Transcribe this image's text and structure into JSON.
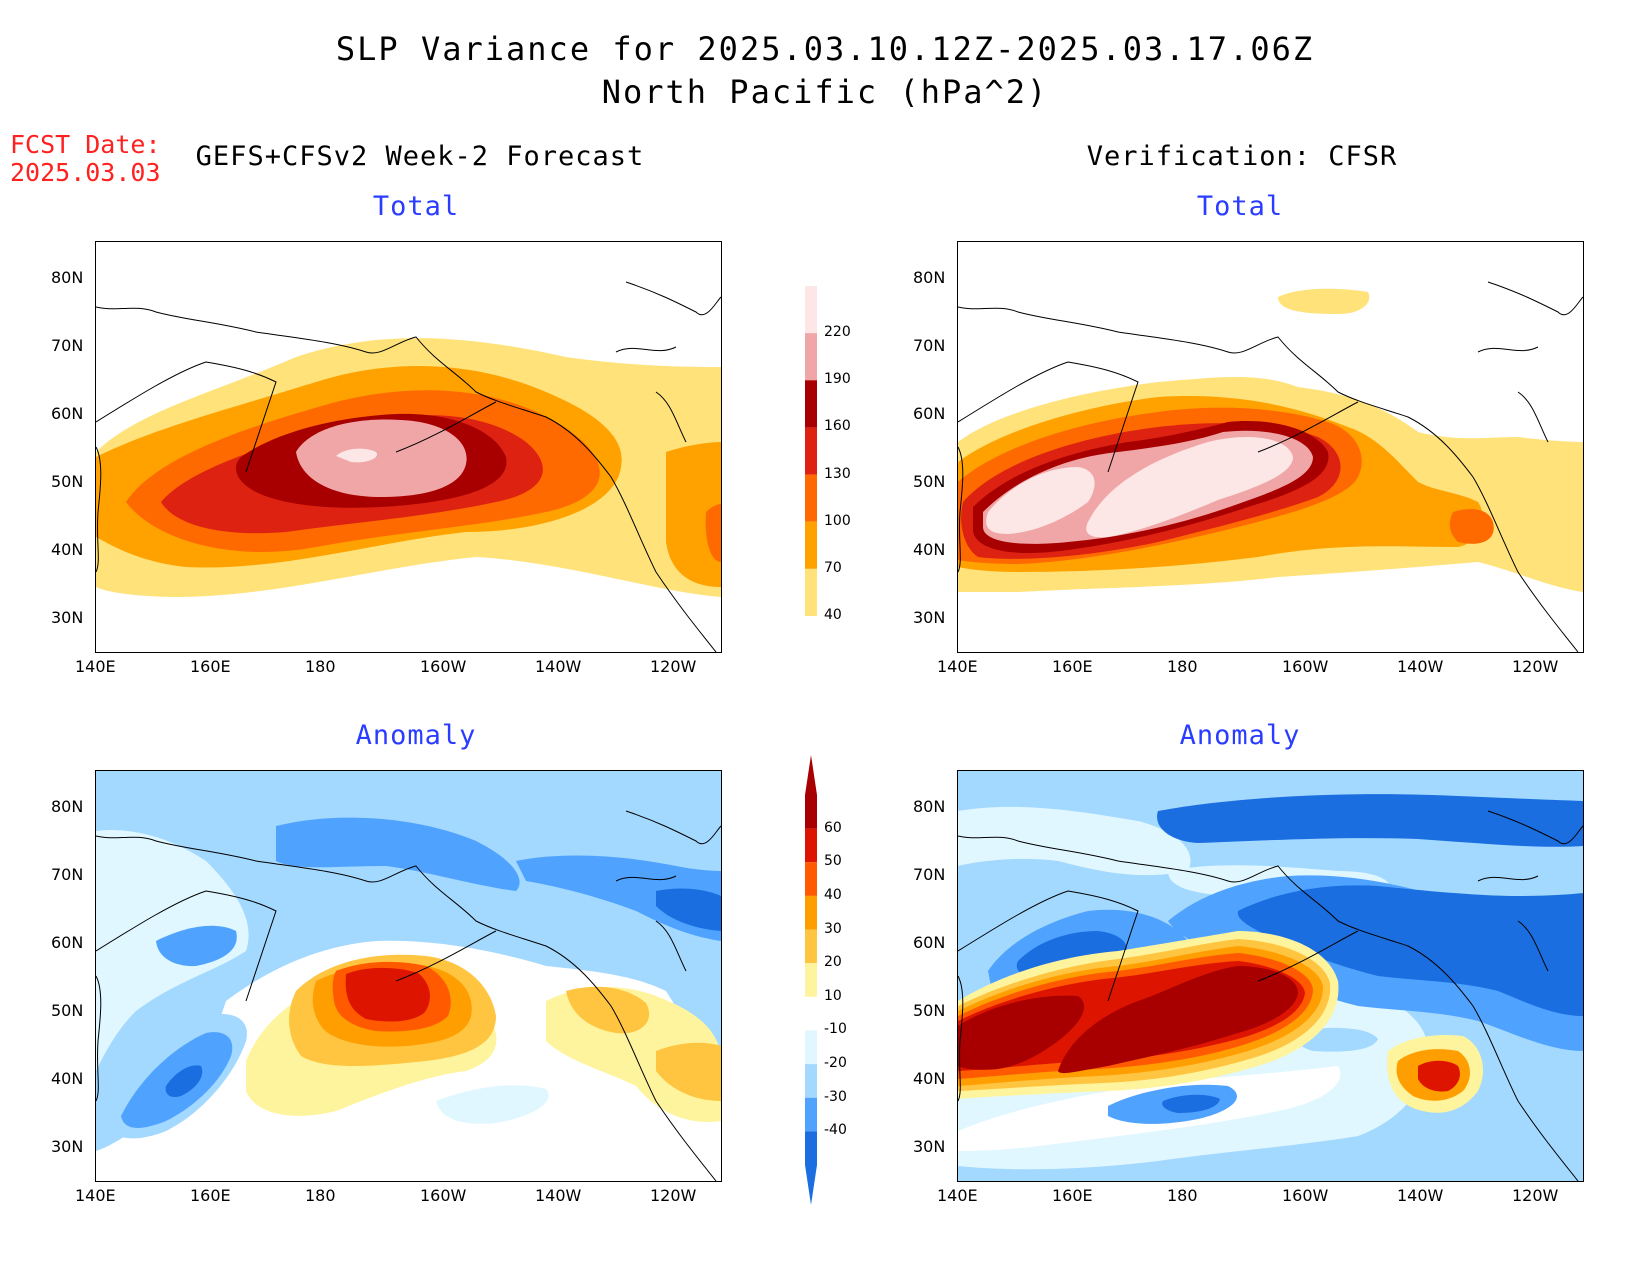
{
  "title_line1": "SLP Variance for 2025.03.10.12Z-2025.03.17.06Z",
  "title_line2": "North Pacific (hPa^2)",
  "fcst_label": "FCST Date:",
  "fcst_date": "2025.03.03",
  "left_header": "GEFS+CFSv2 Week-2 Forecast",
  "right_header": "Verification: CFSR",
  "panels": [
    {
      "subtitle": "Total"
    },
    {
      "subtitle": "Total"
    },
    {
      "subtitle": "Anomaly"
    },
    {
      "subtitle": "Anomaly"
    }
  ],
  "lat_ticks": [
    "80N",
    "70N",
    "60N",
    "50N",
    "40N",
    "30N"
  ],
  "lon_ticks": [
    "140E",
    "160E",
    "180",
    "160W",
    "140W",
    "120W"
  ],
  "total_colorbar": {
    "labels": [
      "220",
      "190",
      "160",
      "130",
      "100",
      "70",
      "40"
    ],
    "colors": [
      "#fde6e6",
      "#f0a6a6",
      "#a80000",
      "#dd2211",
      "#ff6a00",
      "#ffa200",
      "#ffe27a"
    ]
  },
  "anomaly_colorbar": {
    "labels": [
      "60",
      "50",
      "40",
      "30",
      "20",
      "10",
      "-10",
      "-20",
      "-30",
      "-40"
    ],
    "colors": [
      "#a80000",
      "#dd1500",
      "#ff5a00",
      "#ff9e00",
      "#ffc540",
      "#fff49e",
      "#ffffff",
      "#e0f7ff",
      "#a3d8ff",
      "#4fa3ff",
      "#1a6ee0"
    ]
  },
  "chart_data": [
    {
      "type": "heatmap",
      "title": "Total",
      "panel": "GEFS+CFSv2 Week-2 Forecast",
      "units": "hPa^2",
      "x_range": [
        "140E",
        "110W"
      ],
      "y_range": [
        "25N",
        "85N"
      ],
      "levels": [
        40,
        70,
        100,
        130,
        160,
        190,
        220
      ],
      "max_region": {
        "center": "~172W 52N",
        "value_gt": 190
      }
    },
    {
      "type": "heatmap",
      "title": "Total",
      "panel": "Verification: CFSR",
      "units": "hPa^2",
      "levels": [
        40,
        70,
        100,
        130,
        160,
        190,
        220
      ],
      "max_region": {
        "center": "~175W 48N",
        "value_gt": 220
      }
    },
    {
      "type": "heatmap",
      "title": "Anomaly",
      "panel": "GEFS+CFSv2 Week-2 Forecast",
      "units": "hPa^2",
      "levels": [
        -40,
        -30,
        -20,
        -10,
        10,
        20,
        30,
        40,
        50,
        60
      ],
      "max_region": {
        "center": "~168W 52N",
        "value_gt": 50
      },
      "min_region": {
        "center": "~165E 40N",
        "value_lt": -30
      }
    },
    {
      "type": "heatmap",
      "title": "Anomaly",
      "panel": "Verification: CFSR",
      "units": "hPa^2",
      "levels": [
        -40,
        -30,
        -20,
        -10,
        10,
        20,
        30,
        40,
        50,
        60
      ],
      "max_region": {
        "center": "~175W 48N",
        "value_gt": 60
      },
      "min_region": {
        "center": "~140W 60N",
        "value_lt": -30
      }
    }
  ]
}
